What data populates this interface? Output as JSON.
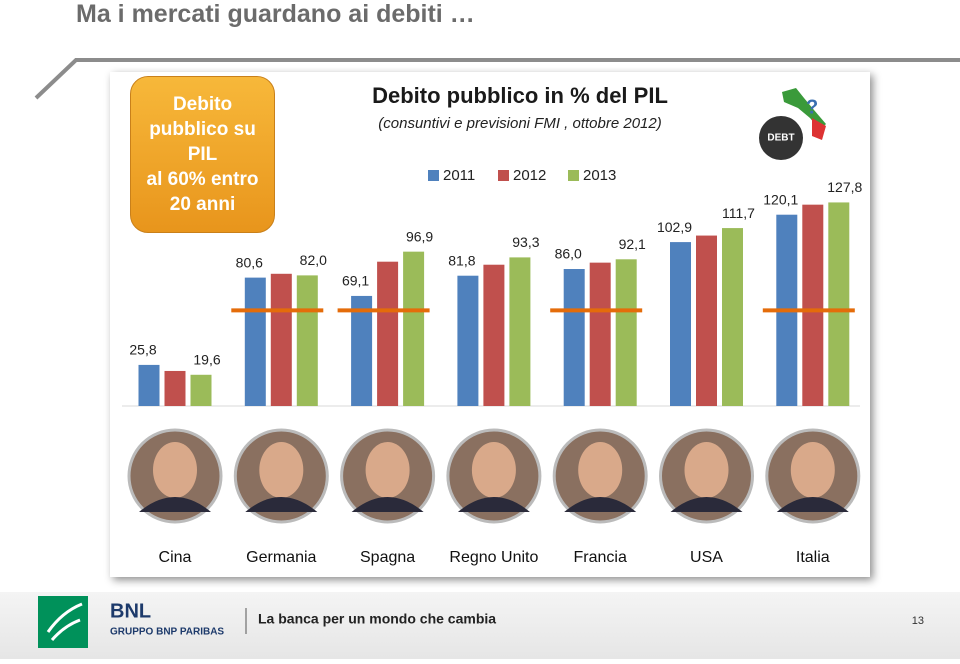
{
  "slide_title": "Ma i mercati guardano ai debiti …",
  "callout": [
    "Debito",
    "pubblico su",
    "PIL",
    "al 60% entro",
    "20 anni"
  ],
  "debt_icon_text": "DEBT",
  "chart_data": {
    "type": "bar",
    "title": "Debito pubblico in % del PIL",
    "subtitle": "(consuntivi e previsioni FMI , ottobre 2012)",
    "categories": [
      "Cina",
      "Germania",
      "Spagna",
      "Regno Unito",
      "Francia",
      "USA",
      "Italia"
    ],
    "series": [
      {
        "name": "2011",
        "color": "#4f81bd",
        "values": [
          25.8,
          80.6,
          69.1,
          81.8,
          86.0,
          102.9,
          120.1
        ],
        "value_labels": [
          "25,8",
          "80,6",
          "69,1",
          "81,8",
          "86,0",
          "102,9",
          "120,1"
        ]
      },
      {
        "name": "2012",
        "color": "#c0504d",
        "values": [
          22,
          83,
          90.6,
          88.7,
          90,
          107,
          126.4
        ]
      },
      {
        "name": "2013",
        "color": "#9bbb59",
        "values": [
          19.6,
          82.0,
          96.9,
          93.3,
          92.1,
          111.7,
          127.8
        ],
        "value_labels": [
          "19,6",
          "82,0",
          "96,9",
          "93,3",
          "92,1",
          "111,7",
          "127,8"
        ]
      }
    ],
    "reference_line": [
      null,
      60,
      60,
      null,
      60,
      null,
      60
    ],
    "reference_color": "#e46c0a",
    "ylim": [
      0,
      140
    ],
    "legend": "top"
  },
  "footer": {
    "brand": "BNL",
    "group": "GRUPPO BNP PARIBAS",
    "tagline": "La banca per un mondo che cambia",
    "page": "13"
  }
}
